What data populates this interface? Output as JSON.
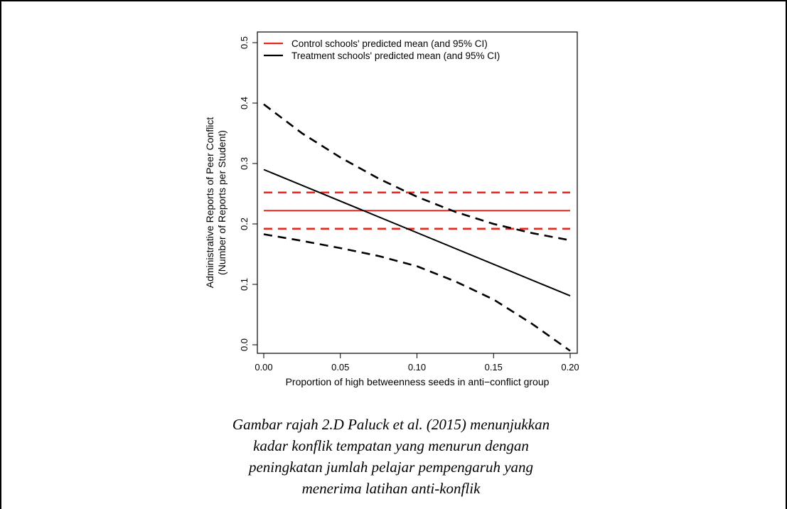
{
  "chart_data": {
    "type": "line",
    "xlabel": "Proportion of high betweenness seeds in anti−conflict group",
    "ylabel_line1": "Administrative Reports of Peer Conflict",
    "ylabel_line2": "(Number of Reports per Student)",
    "xlim": [
      0.0,
      0.2
    ],
    "ylim": [
      0.0,
      0.5
    ],
    "x_ticks": [
      "0.00",
      "0.05",
      "0.10",
      "0.15",
      "0.20"
    ],
    "y_ticks": [
      "0.0",
      "0.1",
      "0.2",
      "0.3",
      "0.4",
      "0.5"
    ],
    "legend": [
      {
        "label": "Control schools' predicted mean (and 95% CI)",
        "color": "#e8271f"
      },
      {
        "label": "Treatment schools' predicted mean (and 95% CI)",
        "color": "#000000"
      }
    ],
    "legend_position": "top-left",
    "series": [
      {
        "name": "Control schools' predicted mean (and 95% CI)",
        "color": "#e8271f",
        "style": "solid",
        "x": [
          0.0,
          0.2
        ],
        "y": [
          0.222,
          0.222
        ]
      },
      {
        "color": "#e8271f",
        "style": "dashed",
        "x": [
          0.0,
          0.2
        ],
        "y": [
          0.252,
          0.252
        ]
      },
      {
        "color": "#e8271f",
        "style": "dashed",
        "x": [
          0.0,
          0.2
        ],
        "y": [
          0.192,
          0.192
        ]
      },
      {
        "name": "Treatment schools' predicted mean (and 95% CI)",
        "color": "#000000",
        "style": "solid",
        "x": [
          0.0,
          0.2
        ],
        "y": [
          0.29,
          0.081
        ]
      },
      {
        "color": "#000000",
        "style": "dashed",
        "x": [
          0.0,
          0.025,
          0.05,
          0.075,
          0.1,
          0.125,
          0.15,
          0.175,
          0.2
        ],
        "y": [
          0.398,
          0.35,
          0.31,
          0.275,
          0.245,
          0.22,
          0.2,
          0.185,
          0.173
        ]
      },
      {
        "color": "#000000",
        "style": "dashed",
        "x": [
          0.0,
          0.025,
          0.05,
          0.075,
          0.1,
          0.125,
          0.15,
          0.175,
          0.2
        ],
        "y": [
          0.183,
          0.172,
          0.16,
          0.147,
          0.13,
          0.105,
          0.075,
          0.035,
          -0.01
        ]
      }
    ]
  },
  "caption": {
    "line1": "Gambar rajah 2.D Paluck et al. (2015) menunjukkan",
    "line2": "kadar konflik tempatan yang menurun dengan",
    "line3": "peningkatan jumlah pelajar pempengaruh yang",
    "line4": "menerima latihan anti-konflik"
  }
}
